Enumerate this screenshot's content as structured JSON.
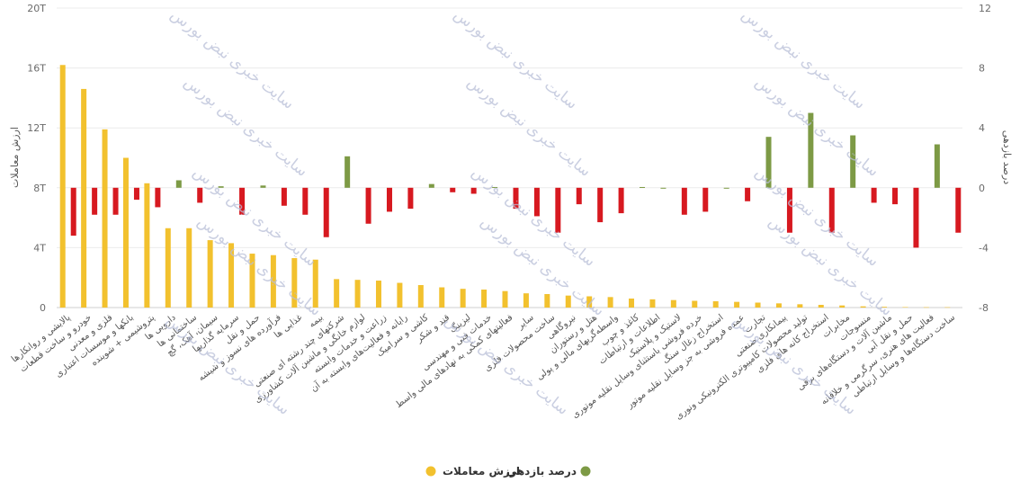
{
  "chart_data": {
    "type": "bar",
    "categories": [
      "پالایشی و روانکارها",
      "خودرو و ساخت قطعات",
      "فلزی و معدنی",
      "بانکها و موسسات اعتباری",
      "پتروشیمی + شوینده",
      "دارویی ها",
      "ساختمانی ها",
      "سیمان، آهک، گچ",
      "سرمایه گذاریها",
      "حمل و نقل",
      "فرآورده های نسوز و شیشه",
      "غذایی ها",
      "بیمه",
      "شرکتهای چند رشته ای صنعتی",
      "لوازم خانگی و ماشین آلات کشاورزی",
      "زراعت و خدمات وابسته",
      "رایانه و فعالیت‌های وابسته به آن",
      "کاشی و سرامیک",
      "قند و شکر",
      "لیزینگ",
      "خدمات فنی و مهندسی",
      "فعالیتهای کمکی به نهادهای مالی واسط",
      "سایر",
      "ساخت محصولات فلزی",
      "نیروگاهی",
      "هتل و رستوران",
      "واسطه‌گریهای مالی و پولی",
      "کاغذ و چوب",
      "اطلاعات و ارتباطات",
      "لاستیک و پلاستیک",
      "خرده فروشی باستثنای وسایل نقلیه موتوری",
      "استخراج زغال سنگ",
      "عمده فروشی به جز وسایل نقلیه موتور",
      "تجارت",
      "پیمانکاری صنعتی",
      "تولید محصولات کامپیوتری الکترونیکی ونوری",
      "استخراج کانه های فلزی",
      "مخابرات",
      "منسوجات",
      "ماشین آلات و دستگاه‌های برقی",
      "حمل و نقل آبی",
      "فعالیت های هنری، سرگرمی و خلاقانه",
      "ساخت دستگاه‌ها و وسایل ارتباطی"
    ],
    "series": [
      {
        "name": "ارزش معاملات",
        "axis": "left",
        "color": "#f2c12e",
        "values": [
          16.2,
          14.6,
          11.9,
          10.0,
          8.3,
          5.3,
          5.3,
          4.5,
          4.3,
          3.6,
          3.5,
          3.3,
          3.2,
          1.9,
          1.85,
          1.8,
          1.65,
          1.5,
          1.35,
          1.25,
          1.2,
          1.1,
          0.95,
          0.9,
          0.8,
          0.75,
          0.7,
          0.6,
          0.55,
          0.5,
          0.45,
          0.42,
          0.38,
          0.33,
          0.28,
          0.22,
          0.18,
          0.14,
          0.08,
          0.05,
          0.03,
          0.02,
          0.02
        ]
      },
      {
        "name": "درصد بازدهی",
        "axis": "right",
        "color_positive": "#7d9a45",
        "color_negative": "#d71920",
        "values": [
          -3.2,
          -1.8,
          -1.8,
          -0.8,
          -1.3,
          0.5,
          -1.0,
          0.1,
          -1.8,
          0.15,
          -1.2,
          -1.8,
          -3.3,
          2.1,
          -2.4,
          -1.6,
          -1.4,
          0.25,
          -0.3,
          -0.4,
          0.05,
          -1.4,
          -1.9,
          -3.0,
          -1.1,
          -2.3,
          -1.7,
          0.05,
          0.0,
          -1.8,
          -1.6,
          0.0,
          -0.9,
          3.4,
          -3.0,
          5.0,
          -3.0,
          3.5,
          -1.0,
          -1.1,
          -4.0,
          2.9,
          -3.0
        ]
      }
    ],
    "left_axis": {
      "title": "ارزش معاملات",
      "min": 0,
      "max": 20,
      "ticks": [
        0,
        4,
        8,
        12,
        16,
        20
      ],
      "tick_labels": [
        "0",
        "4T",
        "8T",
        "12T",
        "16T",
        "20T"
      ]
    },
    "right_axis": {
      "title": "درصد بازدهی",
      "min": -8,
      "max": 12,
      "ticks": [
        -8,
        -4,
        0,
        4,
        8,
        12
      ],
      "tick_labels": [
        "-8",
        "-4",
        "0",
        "4",
        "8",
        "12"
      ]
    },
    "grid": true,
    "legend": {
      "position": "bottom-center",
      "items": [
        {
          "label": "درصد بازدهی",
          "color": "#7d9a45"
        },
        {
          "label": "ارزش معاملات",
          "color": "#f2c12e"
        }
      ]
    },
    "watermark": "سایت خبری نبض بورس"
  }
}
